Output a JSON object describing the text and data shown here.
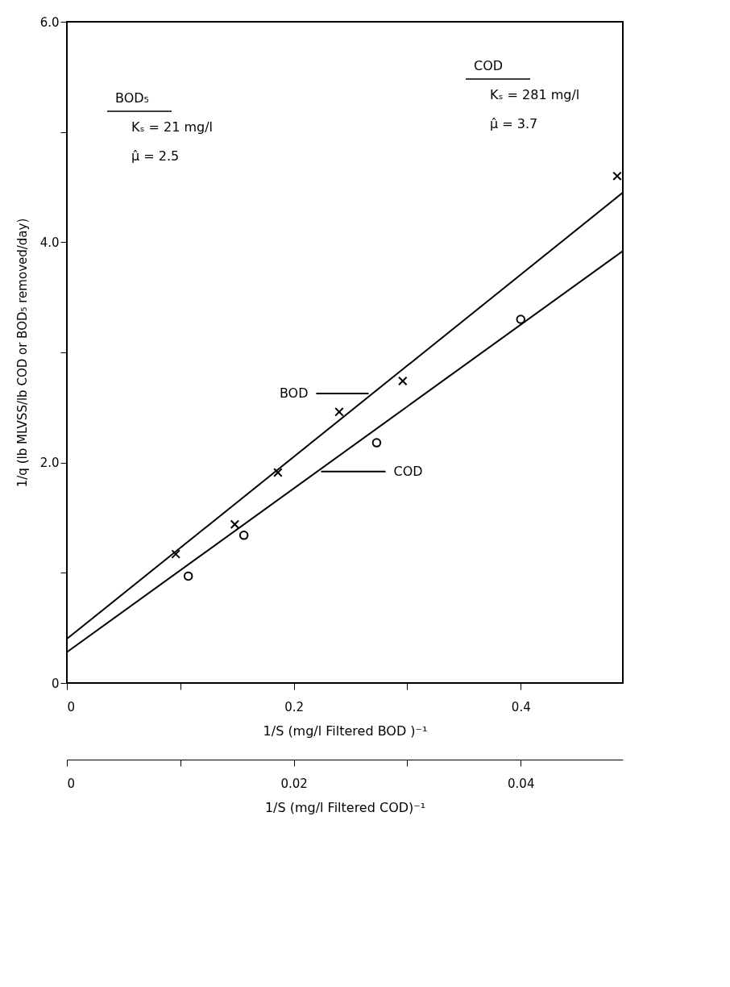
{
  "chart_data": {
    "type": "scatter",
    "xlabel": "1/S (mg/l Filtered BOD )⁻¹",
    "x2label": "1/S (mg/l Filtered COD)⁻¹",
    "ylabel": "1/q (lb MLVSS/lb COD or BOD₅ removed/day)",
    "xlim": [
      0,
      0.49
    ],
    "xticks": [
      0,
      {
        "value": 0.1,
        "label": null
      },
      {
        "value": 0.2,
        "label": "0.2"
      },
      {
        "value": 0.3,
        "label": null
      },
      {
        "value": 0.4,
        "label": "0.4"
      }
    ],
    "x2lim": [
      0,
      0.049
    ],
    "x2ticks": [
      0,
      {
        "value": 0.01,
        "label": null
      },
      {
        "value": 0.02,
        "label": "0.02"
      },
      {
        "value": 0.03,
        "label": null
      },
      {
        "value": 0.04,
        "label": "0.04"
      }
    ],
    "ylim": [
      0,
      6
    ],
    "yticks": [
      0,
      {
        "value": 1,
        "label": null
      },
      {
        "value": 2,
        "label": "2.0"
      },
      {
        "value": 3,
        "label": null
      },
      {
        "value": 4,
        "label": "4.0"
      },
      {
        "value": 5,
        "label": null
      },
      {
        "value": 6,
        "label": "6.0"
      }
    ],
    "series": [
      {
        "marker": "cross",
        "color": "#000000",
        "x": [
          0.096,
          0.148,
          0.186,
          0.24,
          0.296,
          0.485
        ],
        "values": [
          1.17,
          1.44,
          1.91,
          2.46,
          2.74,
          4.6
        ]
      },
      {
        "marker": "circle",
        "axis": "x2",
        "color": "#000000",
        "x": [
          0.0107,
          0.0156,
          0.0273,
          0.04
        ],
        "values": [
          0.97,
          1.34,
          2.18,
          3.3
        ]
      },
      {
        "name": "BOD",
        "type": "line",
        "color": "#000000",
        "x": [
          0,
          0.49
        ],
        "values": [
          0.4,
          4.45
        ]
      },
      {
        "name": "COD",
        "type": "line",
        "axis": "x2",
        "color": "#000000",
        "x": [
          0,
          0.049
        ],
        "values": [
          0.28,
          3.92
        ]
      }
    ],
    "annotations": [
      "BOD₅",
      "Kₛ = 21 mg/l",
      "μ̂ = 2.5",
      "COD",
      "Kₛ = 281 mg/l",
      "μ̂ = 3.7"
    ]
  }
}
